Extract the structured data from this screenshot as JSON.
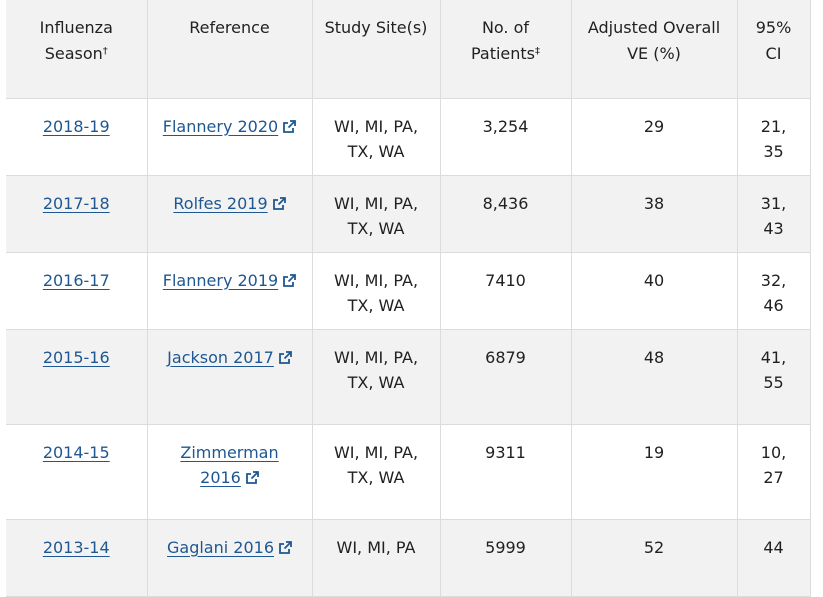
{
  "table": {
    "headers": {
      "season": "Influenza Season",
      "season_mark": "†",
      "reference": "Reference",
      "sites": "Study Site(s)",
      "patients": "No. of Patients",
      "patients_mark": "‡",
      "ve": "Adjusted Overall VE (%)",
      "ci": "95% CI"
    },
    "rows": [
      {
        "season": "2018-19",
        "reference": "Flannery 2020",
        "sites": "WI, MI, PA, TX, WA",
        "patients": "3,254",
        "ve": "29",
        "ci": "21, 35"
      },
      {
        "season": "2017-18",
        "reference": "Rolfes 2019",
        "sites": "WI, MI, PA, TX, WA",
        "patients": "8,436",
        "ve": "38",
        "ci": "31, 43"
      },
      {
        "season": "2016-17",
        "reference": "Flannery 2019",
        "sites": "WI, MI, PA, TX, WA",
        "patients": "7410",
        "ve": "40",
        "ci": "32, 46"
      },
      {
        "season": "2015-16",
        "reference": "Jackson 2017",
        "sites": "WI, MI, PA, TX, WA",
        "patients": "6879",
        "ve": "48",
        "ci": "41, 55"
      },
      {
        "season": "2014-15",
        "reference": "Zimmerman 2016",
        "sites": "WI, MI, PA, TX, WA",
        "patients": "9311",
        "ve": "19",
        "ci": "10, 27"
      },
      {
        "season": "2013-14",
        "reference": "Gaglani 2016",
        "sites": "WI, MI, PA",
        "patients": "5999",
        "ve": "52",
        "ci": "44"
      }
    ]
  },
  "icons": {
    "external_link": "external-link-icon"
  },
  "colors": {
    "link": "#1e5791",
    "header_bg": "#f2f2f2",
    "alt_row_bg": "#f2f2f2",
    "border": "#dcdcdc"
  }
}
